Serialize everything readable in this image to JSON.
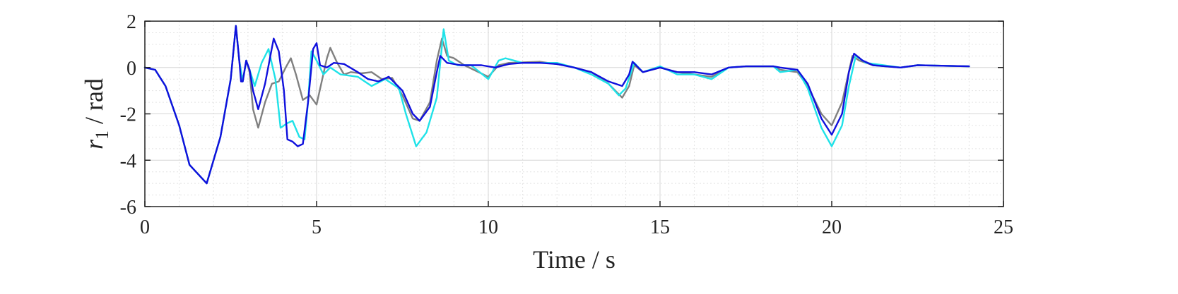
{
  "chart_data": {
    "type": "line",
    "xlabel": "Time / s",
    "ylabel": {
      "var": "r",
      "sub": "1",
      "rest": " / rad"
    },
    "xlim": [
      0,
      25
    ],
    "ylim": [
      -6,
      2
    ],
    "xticks": [
      0,
      5,
      10,
      15,
      20,
      25
    ],
    "yticks": [
      2,
      0,
      -2,
      -4,
      -6
    ],
    "grid": true,
    "minor_grid": true,
    "series": [
      {
        "color": "#808080",
        "points": [
          [
            0,
            0
          ],
          [
            0.3,
            -0.1
          ],
          [
            0.6,
            -0.8
          ],
          [
            1.0,
            -2.5
          ],
          [
            1.3,
            -4.2
          ],
          [
            1.8,
            -5.0
          ],
          [
            2.2,
            -3.0
          ],
          [
            2.5,
            -0.5
          ],
          [
            2.65,
            1.8
          ],
          [
            2.75,
            0.3
          ],
          [
            2.85,
            -0.6
          ],
          [
            2.95,
            0.3
          ],
          [
            3.05,
            -0.2
          ],
          [
            3.15,
            -1.8
          ],
          [
            3.3,
            -2.6
          ],
          [
            3.5,
            -1.5
          ],
          [
            3.7,
            -0.7
          ],
          [
            3.9,
            -0.6
          ],
          [
            4.1,
            0.0
          ],
          [
            4.25,
            0.4
          ],
          [
            4.4,
            -0.3
          ],
          [
            4.6,
            -1.4
          ],
          [
            4.8,
            -1.2
          ],
          [
            5.0,
            -1.6
          ],
          [
            5.15,
            -0.6
          ],
          [
            5.3,
            0.4
          ],
          [
            5.4,
            0.85
          ],
          [
            5.6,
            0.2
          ],
          [
            5.8,
            -0.3
          ],
          [
            6.0,
            -0.2
          ],
          [
            6.3,
            -0.25
          ],
          [
            6.6,
            -0.2
          ],
          [
            6.9,
            -0.5
          ],
          [
            7.2,
            -0.45
          ],
          [
            7.5,
            -1.2
          ],
          [
            7.8,
            -2.2
          ],
          [
            8.0,
            -2.3
          ],
          [
            8.3,
            -1.5
          ],
          [
            8.5,
            0.3
          ],
          [
            8.65,
            1.25
          ],
          [
            8.8,
            0.5
          ],
          [
            9.0,
            0.4
          ],
          [
            9.3,
            0.1
          ],
          [
            10.0,
            -0.4
          ],
          [
            10.3,
            0.1
          ],
          [
            10.6,
            0.2
          ],
          [
            11.5,
            0.25
          ],
          [
            12.2,
            0.1
          ],
          [
            12.5,
            0.0
          ],
          [
            13.0,
            -0.2
          ],
          [
            13.5,
            -0.7
          ],
          [
            13.9,
            -1.3
          ],
          [
            14.1,
            -0.8
          ],
          [
            14.25,
            0.1
          ],
          [
            14.5,
            -0.2
          ],
          [
            15.0,
            0.0
          ],
          [
            15.5,
            -0.2
          ],
          [
            16.0,
            -0.3
          ],
          [
            16.5,
            -0.4
          ],
          [
            17.0,
            0.0
          ],
          [
            17.5,
            0.05
          ],
          [
            18.3,
            0.05
          ],
          [
            18.5,
            -0.1
          ],
          [
            19.0,
            -0.2
          ],
          [
            19.3,
            -0.8
          ],
          [
            19.7,
            -2.0
          ],
          [
            20.0,
            -2.5
          ],
          [
            20.3,
            -1.5
          ],
          [
            20.6,
            0.5
          ],
          [
            20.8,
            0.3
          ],
          [
            21.2,
            0.1
          ],
          [
            22.0,
            0.0
          ],
          [
            22.5,
            0.1
          ],
          [
            24.0,
            0.05
          ]
        ]
      },
      {
        "color": "#1fe2e8",
        "points": [
          [
            0,
            0
          ],
          [
            0.3,
            -0.1
          ],
          [
            0.6,
            -0.8
          ],
          [
            1.0,
            -2.5
          ],
          [
            1.3,
            -4.2
          ],
          [
            1.8,
            -5.0
          ],
          [
            2.2,
            -3.0
          ],
          [
            2.5,
            -0.5
          ],
          [
            2.65,
            1.8
          ],
          [
            2.75,
            0.3
          ],
          [
            2.85,
            -0.6
          ],
          [
            2.95,
            0.3
          ],
          [
            3.05,
            -0.1
          ],
          [
            3.2,
            -0.8
          ],
          [
            3.4,
            0.2
          ],
          [
            3.6,
            0.8
          ],
          [
            3.8,
            -0.5
          ],
          [
            3.95,
            -2.6
          ],
          [
            4.15,
            -2.4
          ],
          [
            4.3,
            -2.3
          ],
          [
            4.5,
            -3.0
          ],
          [
            4.65,
            -3.1
          ],
          [
            4.75,
            -1.5
          ],
          [
            4.85,
            0.7
          ],
          [
            5.0,
            0.3
          ],
          [
            5.2,
            -0.3
          ],
          [
            5.4,
            0.0
          ],
          [
            5.7,
            -0.3
          ],
          [
            6.2,
            -0.4
          ],
          [
            6.6,
            -0.8
          ],
          [
            7.0,
            -0.5
          ],
          [
            7.4,
            -0.9
          ],
          [
            7.6,
            -2.0
          ],
          [
            7.9,
            -3.4
          ],
          [
            8.2,
            -2.8
          ],
          [
            8.5,
            -1.3
          ],
          [
            8.7,
            1.65
          ],
          [
            8.85,
            0.3
          ],
          [
            9.1,
            0.1
          ],
          [
            9.5,
            0.1
          ],
          [
            10.0,
            -0.5
          ],
          [
            10.3,
            0.3
          ],
          [
            10.5,
            0.4
          ],
          [
            11.0,
            0.2
          ],
          [
            11.5,
            0.2
          ],
          [
            12.0,
            0.2
          ],
          [
            12.5,
            0.0
          ],
          [
            13.0,
            -0.3
          ],
          [
            13.5,
            -0.7
          ],
          [
            13.8,
            -1.2
          ],
          [
            14.0,
            -0.9
          ],
          [
            14.25,
            0.2
          ],
          [
            14.5,
            -0.2
          ],
          [
            15.0,
            0.05
          ],
          [
            15.5,
            -0.3
          ],
          [
            16.0,
            -0.3
          ],
          [
            16.5,
            -0.5
          ],
          [
            17.0,
            0.0
          ],
          [
            17.5,
            0.05
          ],
          [
            18.3,
            0.05
          ],
          [
            18.5,
            -0.2
          ],
          [
            19.0,
            -0.1
          ],
          [
            19.3,
            -0.9
          ],
          [
            19.7,
            -2.6
          ],
          [
            20.0,
            -3.4
          ],
          [
            20.3,
            -2.5
          ],
          [
            20.5,
            -0.8
          ],
          [
            20.7,
            0.5
          ],
          [
            21.0,
            0.2
          ],
          [
            21.5,
            0.1
          ],
          [
            22.0,
            0.0
          ],
          [
            22.5,
            0.1
          ],
          [
            24.0,
            0.05
          ]
        ]
      },
      {
        "color": "#1010dd",
        "points": [
          [
            0,
            0
          ],
          [
            0.3,
            -0.1
          ],
          [
            0.6,
            -0.8
          ],
          [
            1.0,
            -2.5
          ],
          [
            1.3,
            -4.2
          ],
          [
            1.8,
            -5.0
          ],
          [
            2.2,
            -3.0
          ],
          [
            2.5,
            -0.5
          ],
          [
            2.65,
            1.8
          ],
          [
            2.75,
            0.3
          ],
          [
            2.8,
            -0.6
          ],
          [
            2.85,
            -0.6
          ],
          [
            2.95,
            0.3
          ],
          [
            3.05,
            -0.1
          ],
          [
            3.15,
            -1.0
          ],
          [
            3.3,
            -1.8
          ],
          [
            3.5,
            -0.7
          ],
          [
            3.75,
            1.25
          ],
          [
            3.9,
            0.7
          ],
          [
            4.05,
            -1.0
          ],
          [
            4.15,
            -3.1
          ],
          [
            4.3,
            -3.2
          ],
          [
            4.45,
            -3.4
          ],
          [
            4.6,
            -3.3
          ],
          [
            4.75,
            -1.5
          ],
          [
            4.9,
            0.8
          ],
          [
            5.0,
            1.05
          ],
          [
            5.1,
            0.1
          ],
          [
            5.3,
            0.0
          ],
          [
            5.5,
            0.2
          ],
          [
            5.8,
            0.15
          ],
          [
            6.2,
            -0.2
          ],
          [
            6.5,
            -0.5
          ],
          [
            6.8,
            -0.6
          ],
          [
            7.1,
            -0.4
          ],
          [
            7.5,
            -1.0
          ],
          [
            7.8,
            -2.0
          ],
          [
            8.0,
            -2.3
          ],
          [
            8.3,
            -1.7
          ],
          [
            8.5,
            -0.2
          ],
          [
            8.6,
            0.5
          ],
          [
            8.8,
            0.2
          ],
          [
            9.2,
            0.1
          ],
          [
            9.8,
            0.1
          ],
          [
            10.2,
            0.0
          ],
          [
            10.6,
            0.15
          ],
          [
            11.0,
            0.2
          ],
          [
            11.5,
            0.2
          ],
          [
            12.0,
            0.15
          ],
          [
            12.5,
            0.0
          ],
          [
            13.0,
            -0.2
          ],
          [
            13.5,
            -0.6
          ],
          [
            13.9,
            -0.8
          ],
          [
            14.1,
            -0.3
          ],
          [
            14.2,
            0.25
          ],
          [
            14.5,
            -0.2
          ],
          [
            15.0,
            0.0
          ],
          [
            15.5,
            -0.2
          ],
          [
            16.0,
            -0.2
          ],
          [
            16.5,
            -0.3
          ],
          [
            17.0,
            0.0
          ],
          [
            17.5,
            0.05
          ],
          [
            18.3,
            0.05
          ],
          [
            18.5,
            0.0
          ],
          [
            19.0,
            -0.1
          ],
          [
            19.3,
            -0.7
          ],
          [
            19.7,
            -2.2
          ],
          [
            20.0,
            -2.9
          ],
          [
            20.3,
            -2.0
          ],
          [
            20.5,
            -0.2
          ],
          [
            20.65,
            0.6
          ],
          [
            20.9,
            0.3
          ],
          [
            21.2,
            0.1
          ],
          [
            22.0,
            0.0
          ],
          [
            22.5,
            0.1
          ],
          [
            24.0,
            0.05
          ]
        ]
      }
    ]
  }
}
